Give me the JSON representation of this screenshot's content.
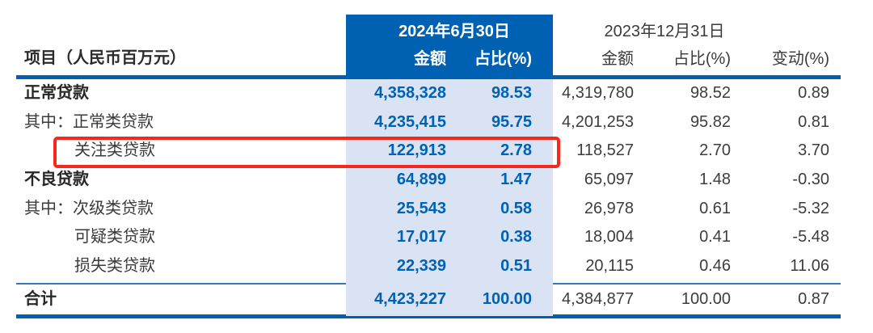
{
  "header": {
    "item_col": "项目（人民币百万元）",
    "period_2024": {
      "title": "2024年6月30日",
      "amount": "金额",
      "pct": "占比(%)"
    },
    "period_2023": {
      "title": "2023年12月31日",
      "amount": "金额",
      "pct": "占比(%)",
      "change": "变动(%)"
    }
  },
  "rows": [
    {
      "label": "正常贷款",
      "amount_2024": "4,358,328",
      "pct_2024": "98.53",
      "amount_2023": "4,319,780",
      "pct_2023": "98.52",
      "change": "0.89"
    },
    {
      "label": "其中：正常类贷款",
      "amount_2024": "4,235,415",
      "pct_2024": "95.75",
      "amount_2023": "4,201,253",
      "pct_2023": "95.82",
      "change": "0.81"
    },
    {
      "label": "关注类贷款",
      "amount_2024": "122,913",
      "pct_2024": "2.78",
      "amount_2023": "118,527",
      "pct_2023": "2.70",
      "change": "3.70"
    },
    {
      "label": "不良贷款",
      "amount_2024": "64,899",
      "pct_2024": "1.47",
      "amount_2023": "65,097",
      "pct_2023": "1.48",
      "change": "-0.30"
    },
    {
      "label": "其中：次级类贷款",
      "amount_2024": "25,543",
      "pct_2024": "0.58",
      "amount_2023": "26,978",
      "pct_2023": "0.61",
      "change": "-5.32"
    },
    {
      "label": "可疑类贷款",
      "amount_2024": "17,017",
      "pct_2024": "0.38",
      "amount_2023": "18,004",
      "pct_2023": "0.41",
      "change": "-5.48"
    },
    {
      "label": "损失类贷款",
      "amount_2024": "22,339",
      "pct_2024": "0.51",
      "amount_2023": "20,115",
      "pct_2023": "0.46",
      "change": "11.06"
    }
  ],
  "total": {
    "label": "合计",
    "amount_2024": "4,423,227",
    "pct_2024": "100.00",
    "amount_2023": "4,384,877",
    "pct_2023": "100.00",
    "change": "0.87"
  },
  "highlight": {
    "row_label": "关注类贷款",
    "color": "#f4281c"
  },
  "colors": {
    "accent_blue": "#0061b3",
    "band_blue": "#d9e3f3",
    "number_blue": "#0062b4",
    "highlight_red": "#f4281c"
  }
}
